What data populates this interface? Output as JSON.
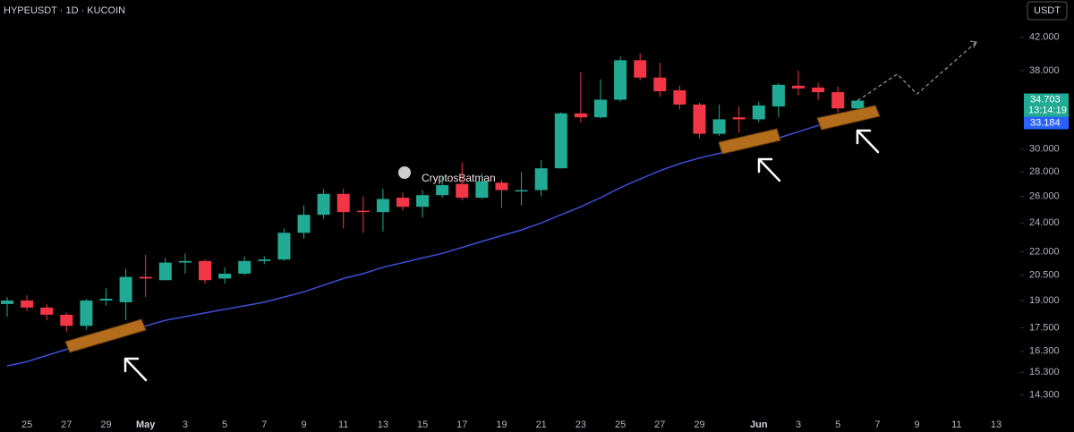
{
  "chart_data": {
    "type": "candlestick",
    "symbol": "HYPEUSDT · 1D · KUCOIN",
    "currency": "USDT",
    "watermark": "CryptosBatman",
    "last_price": 34.703,
    "countdown": "13:14:19",
    "ema_last": 33.184,
    "log_scale": true,
    "up_color": "#22ab94",
    "down_color": "#f23645",
    "ylim": [
      13.6,
      47.0
    ],
    "yticks": [
      {
        "value": 42,
        "label": "42.000"
      },
      {
        "value": 38,
        "label": "38.000"
      },
      {
        "value": 30,
        "label": "30.000"
      },
      {
        "value": 28,
        "label": "28.000"
      },
      {
        "value": 26,
        "label": "26.000"
      },
      {
        "value": 24,
        "label": "24.000"
      },
      {
        "value": 22,
        "label": "22.000"
      },
      {
        "value": 20.5,
        "label": "20.500"
      },
      {
        "value": 19,
        "label": "19.000"
      },
      {
        "value": 17.5,
        "label": "17.500"
      },
      {
        "value": 16.3,
        "label": "16.300"
      },
      {
        "value": 15.3,
        "label": "15.300"
      },
      {
        "value": 14.3,
        "label": "14.300"
      }
    ],
    "categories": [
      null,
      "25",
      null,
      "27",
      null,
      "29",
      null,
      "May",
      null,
      "3",
      null,
      "5",
      null,
      "7",
      null,
      "9",
      null,
      "11",
      null,
      "13",
      null,
      "15",
      null,
      "17",
      null,
      "19",
      null,
      "21",
      null,
      "23",
      null,
      "25",
      null,
      "27",
      null,
      "29",
      null,
      null,
      "Jun",
      null,
      "3",
      null,
      "5",
      null,
      "7",
      null,
      "9",
      null,
      "11",
      null,
      "13"
    ],
    "open": [
      18.8,
      19.0,
      18.6,
      18.2,
      17.6,
      19.0,
      18.9,
      20.4,
      20.2,
      21.3,
      21.4,
      20.3,
      20.6,
      21.4,
      21.5,
      23.3,
      24.6,
      26.2,
      24.9,
      24.8,
      25.9,
      25.2,
      26.1,
      27.0,
      25.9,
      27.1,
      26.5,
      26.5,
      28.3,
      33.4,
      33.0,
      34.8,
      39.2,
      37.2,
      35.8,
      34.3,
      31.4,
      33.0,
      32.8,
      34.1,
      36.3,
      36.1,
      35.6,
      33.9,
      null,
      null,
      null,
      null,
      null,
      null,
      null
    ],
    "high": [
      19.2,
      19.3,
      18.8,
      18.3,
      19.1,
      19.7,
      20.9,
      21.8,
      21.6,
      21.9,
      21.5,
      21.0,
      21.7,
      21.7,
      23.6,
      25.3,
      26.6,
      26.6,
      26.0,
      26.6,
      26.3,
      26.5,
      27.6,
      28.8,
      27.9,
      27.3,
      28.0,
      29.0,
      33.5,
      37.8,
      37.0,
      39.6,
      40.0,
      38.9,
      36.3,
      34.5,
      34.3,
      34.1,
      34.6,
      36.6,
      38.0,
      36.6,
      36.2,
      34.8,
      null,
      null,
      null,
      null,
      null,
      null,
      null
    ],
    "low": [
      18.1,
      18.4,
      17.9,
      17.3,
      17.4,
      18.7,
      17.9,
      19.2,
      20.2,
      20.6,
      20.0,
      20.0,
      20.5,
      21.2,
      21.4,
      22.9,
      24.3,
      23.6,
      23.3,
      23.4,
      24.9,
      24.4,
      25.9,
      25.7,
      25.8,
      25.1,
      25.3,
      26.0,
      28.3,
      32.5,
      32.9,
      34.6,
      36.9,
      35.1,
      33.8,
      31.0,
      31.2,
      31.5,
      32.5,
      33.0,
      35.3,
      34.8,
      33.5,
      33.7,
      null,
      null,
      null,
      null,
      null,
      null,
      null
    ],
    "close": [
      19.0,
      18.6,
      18.2,
      17.6,
      19.0,
      19.1,
      20.4,
      20.3,
      21.3,
      21.4,
      20.2,
      20.6,
      21.4,
      21.5,
      23.3,
      24.6,
      26.2,
      24.8,
      24.8,
      25.8,
      25.2,
      26.1,
      26.9,
      25.9,
      27.2,
      26.5,
      26.5,
      28.3,
      33.4,
      33.0,
      34.8,
      39.2,
      37.2,
      35.7,
      34.3,
      31.4,
      32.8,
      32.8,
      34.2,
      36.4,
      36.0,
      35.6,
      33.9,
      34.7,
      null,
      null,
      null,
      null,
      null,
      null,
      null
    ],
    "ema": {
      "color": "#3d4fd8",
      "values": [
        15.6,
        15.8,
        16.1,
        16.4,
        16.7,
        17.0,
        17.3,
        17.6,
        17.9,
        18.1,
        18.3,
        18.5,
        18.7,
        18.9,
        19.2,
        19.5,
        19.9,
        20.3,
        20.6,
        21.0,
        21.3,
        21.6,
        21.9,
        22.3,
        22.7,
        23.1,
        23.5,
        24.0,
        24.6,
        25.2,
        25.9,
        26.7,
        27.4,
        28.1,
        28.7,
        29.2,
        29.6,
        30.0,
        30.5,
        31.0,
        31.6,
        32.2,
        32.7,
        33.2,
        null,
        null,
        null,
        null,
        null,
        null,
        null
      ]
    },
    "projection": {
      "color": "#9a9a9a",
      "x": [
        43,
        45,
        46,
        49
      ],
      "values": [
        34.7,
        37.6,
        35.4,
        41.4
      ]
    }
  }
}
